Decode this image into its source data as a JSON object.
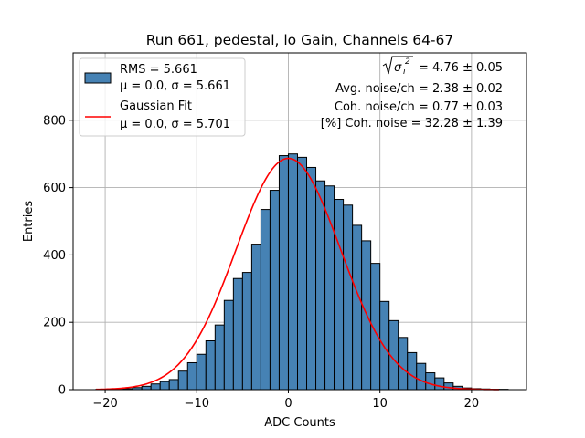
{
  "chart_data": {
    "type": "bar",
    "title": "Run 661, pedestal, lo Gain, Channels 64-67",
    "xlabel": "ADC Counts",
    "ylabel": "Entries",
    "xlim": [
      -23.5,
      26.0
    ],
    "ylim": [
      0,
      1000
    ],
    "grid": true,
    "x_ticks": [
      -20,
      -10,
      0,
      10,
      20
    ],
    "x_tick_labels": [
      "−20",
      "−10",
      "0",
      "10",
      "20"
    ],
    "y_ticks": [
      0,
      200,
      400,
      600,
      800
    ],
    "y_tick_labels": [
      "0",
      "200",
      "400",
      "600",
      "800"
    ],
    "histogram": {
      "name": "RMS = 5.661",
      "color": "#4682b4",
      "edge_color": "#000000",
      "bin_edges": [
        -21.0,
        -20.0,
        -19.0,
        -18.0,
        -17.0,
        -16.0,
        -15.0,
        -14.0,
        -13.0,
        -12.0,
        -11.0,
        -10.0,
        -9.0,
        -8.0,
        -7.0,
        -6.0,
        -5.0,
        -4.0,
        -3.0,
        -2.0,
        -1.0,
        0.0,
        1.0,
        2.0,
        3.0,
        4.0,
        5.0,
        6.0,
        7.0,
        8.0,
        9.0,
        10.0,
        11.0,
        12.0,
        13.0,
        14.0,
        15.0,
        16.0,
        17.0,
        18.0,
        19.0,
        20.0,
        21.0,
        22.0,
        23.0,
        24.0
      ],
      "counts": [
        1,
        1,
        1,
        3,
        6,
        10,
        17,
        24,
        30,
        55,
        80,
        105,
        145,
        192,
        265,
        330,
        348,
        432,
        535,
        592,
        695,
        700,
        690,
        660,
        620,
        605,
        565,
        548,
        488,
        442,
        375,
        262,
        205,
        155,
        110,
        78,
        50,
        35,
        20,
        10,
        5,
        3,
        2,
        1,
        1
      ]
    },
    "fit": {
      "name": "Gaussian Fit",
      "color": "#ff0000",
      "mu": 0.0,
      "sigma": 5.701,
      "amplitude": 687,
      "x_range": [
        -21.0,
        23.0
      ]
    },
    "legend": {
      "position": "top-left",
      "entries": [
        {
          "line1": "RMS = 5.661",
          "line2": "μ = 0.0, σ = 5.661",
          "marker": "patch"
        },
        {
          "line1": "Gaussian Fit",
          "line2": "μ = 0.0, σ = 5.701",
          "marker": "line"
        }
      ]
    },
    "annotations": {
      "position": "top-right",
      "sqrt_sigma_value": "= 4.76 ± 0.05",
      "avg_noise": "Avg. noise/ch = 2.38 ± 0.02",
      "coh_noise": "Coh. noise/ch = 0.77 ± 0.03",
      "pct_coh_noise": "[%] Coh. noise = 32.28 ± 1.39"
    }
  }
}
